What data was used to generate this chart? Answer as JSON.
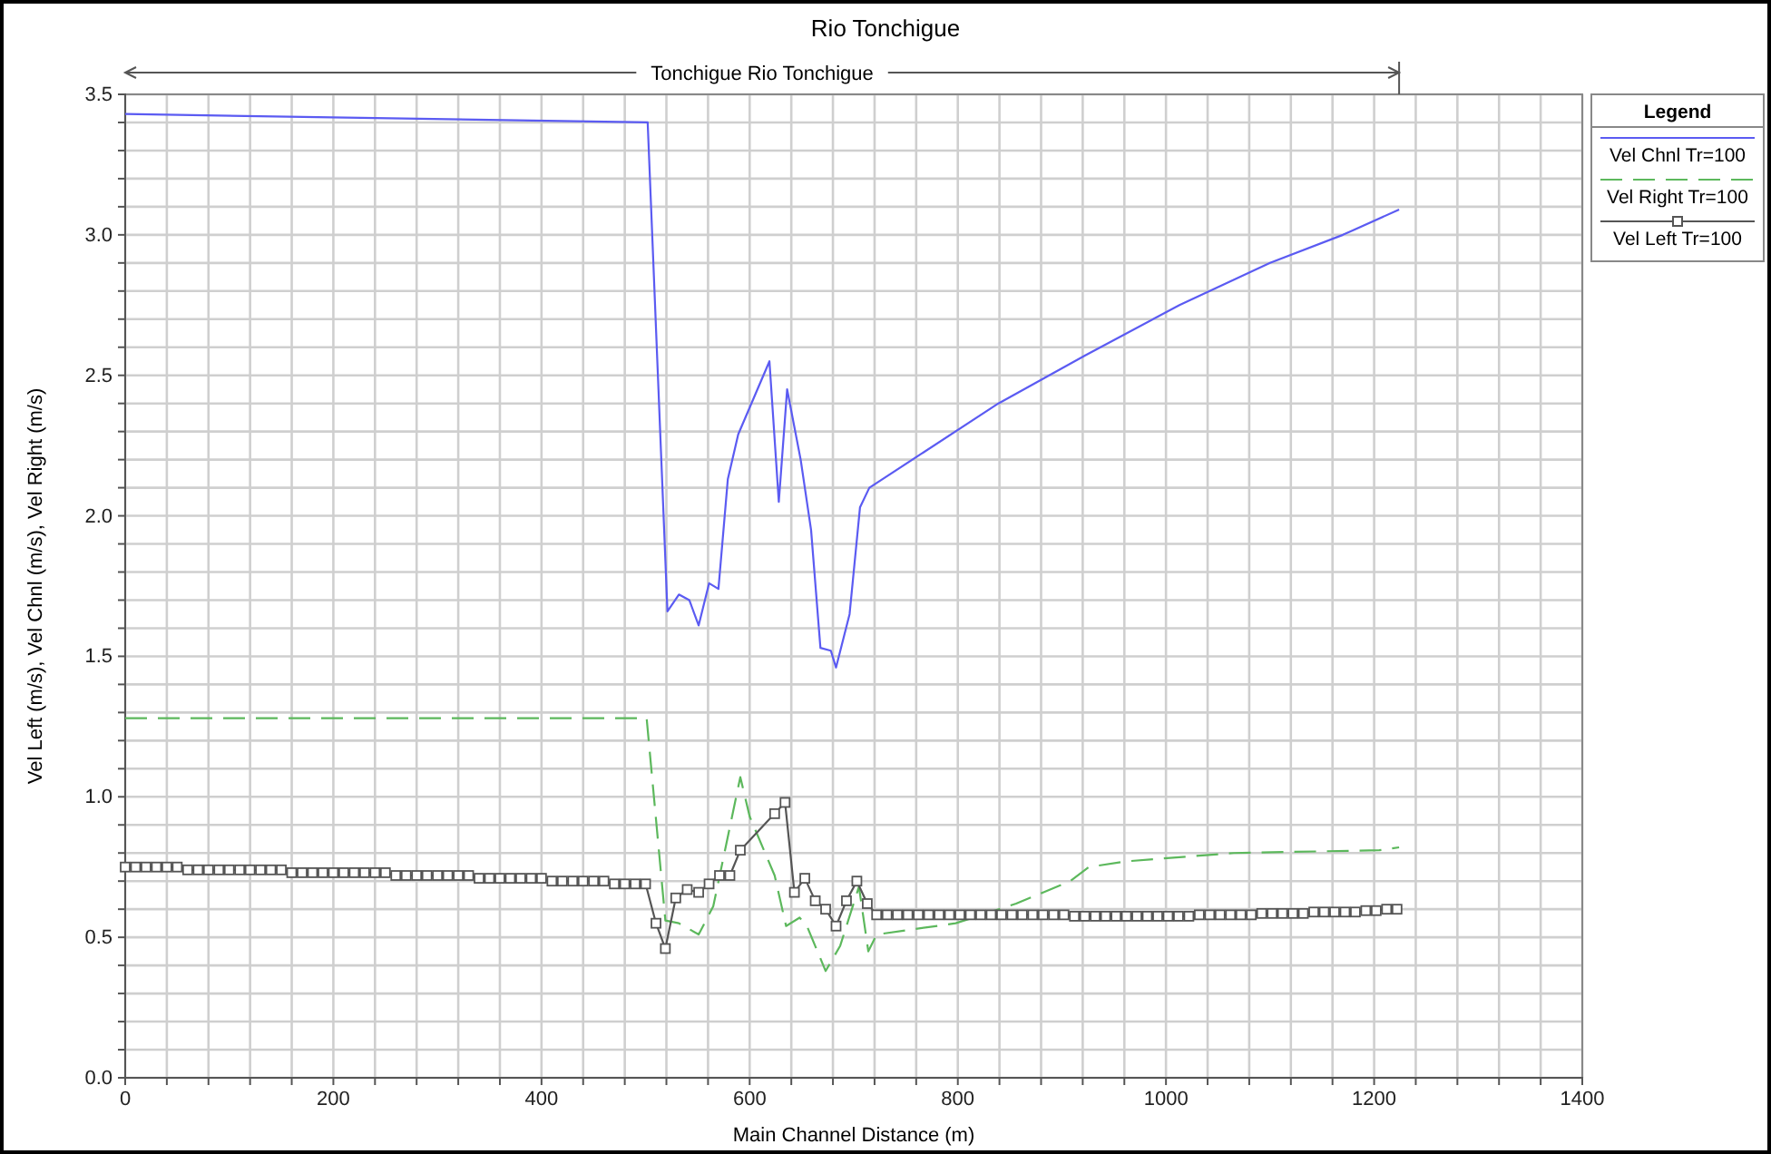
{
  "chart_data": {
    "type": "line",
    "title": "Rio Tonchigue",
    "xlabel": "Main Channel Distance (m)",
    "ylabel": "Vel Left (m/s), Vel Chnl (m/s), Vel Right (m/s)",
    "legend_title": "Legend",
    "legend": "top right",
    "grid": true,
    "annotations": [
      "Tonchigue Rio Tonchigue"
    ],
    "xlim": [
      0,
      1400
    ],
    "ylim": [
      0,
      3.5
    ],
    "xticks": [
      0,
      {
        "value": 40,
        "label": null
      },
      {
        "value": 80,
        "label": null
      },
      {
        "value": 120,
        "label": null
      },
      {
        "value": 160,
        "label": null
      },
      200,
      {
        "value": 240,
        "label": null
      },
      {
        "value": 280,
        "label": null
      },
      {
        "value": 320,
        "label": null
      },
      {
        "value": 360,
        "label": null
      },
      400,
      {
        "value": 440,
        "label": null
      },
      {
        "value": 480,
        "label": null
      },
      {
        "value": 520,
        "label": null
      },
      {
        "value": 560,
        "label": null
      },
      600,
      {
        "value": 640,
        "label": null
      },
      {
        "value": 680,
        "label": null
      },
      {
        "value": 720,
        "label": null
      },
      {
        "value": 760,
        "label": null
      },
      800,
      {
        "value": 840,
        "label": null
      },
      {
        "value": 880,
        "label": null
      },
      {
        "value": 920,
        "label": null
      },
      {
        "value": 960,
        "label": null
      },
      1000,
      {
        "value": 1040,
        "label": null
      },
      {
        "value": 1080,
        "label": null
      },
      {
        "value": 1120,
        "label": null
      },
      {
        "value": 1160,
        "label": null
      },
      1200,
      {
        "value": 1240,
        "label": null
      },
      {
        "value": 1280,
        "label": null
      },
      {
        "value": 1320,
        "label": null
      },
      {
        "value": 1360,
        "label": null
      },
      1400
    ],
    "yticks": [
      {
        "value": 0,
        "label": "0.0"
      },
      {
        "value": 0.1,
        "label": null
      },
      {
        "value": 0.2,
        "label": null
      },
      {
        "value": 0.3,
        "label": null
      },
      {
        "value": 0.4,
        "label": null
      },
      {
        "value": 0.5,
        "label": "0.5"
      },
      {
        "value": 0.6,
        "label": null
      },
      {
        "value": 0.7,
        "label": null
      },
      {
        "value": 0.8,
        "label": null
      },
      {
        "value": 0.9,
        "label": null
      },
      {
        "value": 1,
        "label": "1.0"
      },
      {
        "value": 1.1,
        "label": null
      },
      {
        "value": 1.2,
        "label": null
      },
      {
        "value": 1.3,
        "label": null
      },
      {
        "value": 1.4,
        "label": null
      },
      {
        "value": 1.5,
        "label": "1.5"
      },
      {
        "value": 1.6,
        "label": null
      },
      {
        "value": 1.7,
        "label": null
      },
      {
        "value": 1.8,
        "label": null
      },
      {
        "value": 1.9,
        "label": null
      },
      {
        "value": 2,
        "label": "2.0"
      },
      {
        "value": 2.1,
        "label": null
      },
      {
        "value": 2.2,
        "label": null
      },
      {
        "value": 2.3,
        "label": null
      },
      {
        "value": 2.4,
        "label": null
      },
      {
        "value": 2.5,
        "label": "2.5"
      },
      {
        "value": 2.6,
        "label": null
      },
      {
        "value": 2.7,
        "label": null
      },
      {
        "value": 2.8,
        "label": null
      },
      {
        "value": 2.9,
        "label": null
      },
      {
        "value": 3,
        "label": "3.0"
      },
      {
        "value": 3.1,
        "label": null
      },
      {
        "value": 3.2,
        "label": null
      },
      {
        "value": 3.3,
        "label": null
      },
      {
        "value": 3.4,
        "label": null
      },
      {
        "value": 3.5,
        "label": "3.5"
      }
    ],
    "series": [
      {
        "name": "Vel Chnl Tr=100",
        "color": "#5b5bf2",
        "line_style": "solid",
        "marker": "none",
        "x": [
          0,
          502,
          521,
          532,
          542,
          551,
          561,
          570,
          579,
          589,
          619,
          628,
          636,
          649,
          659,
          668,
          678,
          683,
          696,
          706,
          715,
          839,
          922,
          1013,
          1100,
          1170,
          1224
        ],
        "values": [
          3.43,
          3.4,
          1.66,
          1.72,
          1.7,
          1.61,
          1.76,
          1.74,
          2.13,
          2.29,
          2.55,
          2.05,
          2.45,
          2.2,
          1.95,
          1.53,
          1.52,
          1.46,
          1.65,
          2.03,
          2.1,
          2.4,
          2.57,
          2.75,
          2.9,
          3.0,
          3.09
        ]
      },
      {
        "name": "Vel Right Tr=100",
        "color": "#5cb85c",
        "line_style": "dashed",
        "marker": "none",
        "x": [
          0,
          501,
          519,
          532,
          551,
          565,
          591,
          600,
          624,
          635,
          648,
          655,
          673,
          687,
          705,
          714,
          722,
          798,
          856,
          908,
          926,
          961,
          1065,
          1205,
          1224
        ],
        "values": [
          1.28,
          1.28,
          0.56,
          0.55,
          0.51,
          0.61,
          1.07,
          0.93,
          0.72,
          0.54,
          0.57,
          0.54,
          0.38,
          0.47,
          0.68,
          0.45,
          0.51,
          0.55,
          0.62,
          0.7,
          0.75,
          0.77,
          0.8,
          0.81,
          0.82
        ]
      },
      {
        "name": "Vel Left Tr=100",
        "color": "#555555",
        "line_style": "solid",
        "marker": "square",
        "x": [
          0,
          10,
          20,
          30,
          40,
          50,
          60,
          70,
          80,
          90,
          100,
          110,
          120,
          130,
          140,
          150,
          160,
          170,
          180,
          190,
          200,
          210,
          220,
          230,
          240,
          250,
          260,
          270,
          280,
          290,
          300,
          310,
          320,
          330,
          340,
          350,
          360,
          370,
          380,
          390,
          400,
          410,
          420,
          430,
          440,
          450,
          460,
          470,
          480,
          490,
          500,
          510,
          519,
          529,
          540,
          551,
          561,
          571,
          581,
          591,
          624,
          634,
          643,
          653,
          663,
          673,
          683,
          693,
          703,
          713,
          722,
          732,
          742,
          752,
          762,
          772,
          782,
          792,
          802,
          812,
          822,
          832,
          842,
          852,
          862,
          872,
          882,
          892,
          902,
          912,
          922,
          932,
          942,
          952,
          962,
          972,
          982,
          992,
          1002,
          1012,
          1022,
          1032,
          1042,
          1052,
          1062,
          1072,
          1082,
          1092,
          1102,
          1112,
          1122,
          1132,
          1142,
          1152,
          1162,
          1172,
          1182,
          1192,
          1202,
          1212,
          1222
        ],
        "values": [
          0.75,
          0.75,
          0.75,
          0.75,
          0.75,
          0.75,
          0.74,
          0.74,
          0.74,
          0.74,
          0.74,
          0.74,
          0.74,
          0.74,
          0.74,
          0.74,
          0.73,
          0.73,
          0.73,
          0.73,
          0.73,
          0.73,
          0.73,
          0.73,
          0.73,
          0.73,
          0.72,
          0.72,
          0.72,
          0.72,
          0.72,
          0.72,
          0.72,
          0.72,
          0.71,
          0.71,
          0.71,
          0.71,
          0.71,
          0.71,
          0.71,
          0.7,
          0.7,
          0.7,
          0.7,
          0.7,
          0.7,
          0.69,
          0.69,
          0.69,
          0.69,
          0.55,
          0.46,
          0.64,
          0.67,
          0.66,
          0.69,
          0.72,
          0.72,
          0.81,
          0.94,
          0.98,
          0.66,
          0.71,
          0.63,
          0.6,
          0.54,
          0.63,
          0.7,
          0.62,
          0.58,
          0.58,
          0.58,
          0.58,
          0.58,
          0.58,
          0.58,
          0.58,
          0.58,
          0.58,
          0.58,
          0.58,
          0.58,
          0.58,
          0.58,
          0.58,
          0.58,
          0.58,
          0.58,
          0.575,
          0.575,
          0.575,
          0.575,
          0.575,
          0.575,
          0.575,
          0.575,
          0.575,
          0.575,
          0.575,
          0.575,
          0.58,
          0.58,
          0.58,
          0.58,
          0.58,
          0.58,
          0.585,
          0.585,
          0.585,
          0.585,
          0.585,
          0.59,
          0.59,
          0.59,
          0.59,
          0.59,
          0.595,
          0.595,
          0.6,
          0.6
        ]
      }
    ]
  }
}
